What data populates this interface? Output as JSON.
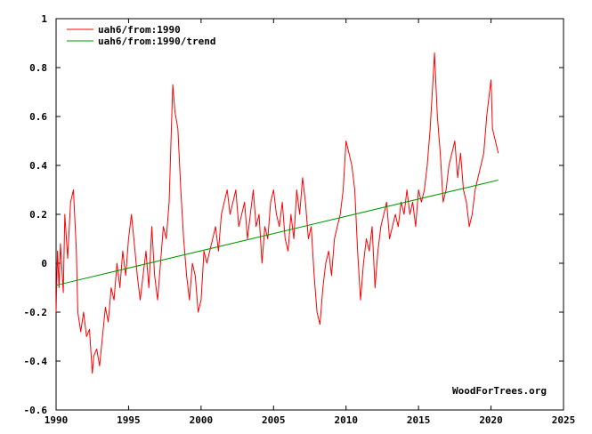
{
  "chart_data": {
    "type": "line",
    "title": "",
    "xlabel": "",
    "ylabel": "",
    "xlim": [
      1990,
      2025
    ],
    "ylim": [
      -0.6,
      1
    ],
    "x_ticks": [
      1990,
      1995,
      2000,
      2005,
      2010,
      2015,
      2020,
      2025
    ],
    "y_ticks": [
      -0.6,
      -0.4,
      -0.2,
      0,
      0.2,
      0.4,
      0.6,
      0.8,
      1
    ],
    "x_tick_labels": [
      "1990",
      "1995",
      "2000",
      "2005",
      "2010",
      "2015",
      "2020",
      "2025"
    ],
    "y_tick_labels": [
      "-0.6",
      "-0.4",
      "-0.2",
      "0",
      "0.2",
      "0.4",
      "0.6",
      "0.8",
      "1"
    ],
    "grid": false,
    "legend_position": "top-left",
    "credit": "WoodForTrees.org",
    "series": [
      {
        "name": "uah6/from:1990",
        "color": "#ff0000",
        "x": [
          1990.0,
          1990.1,
          1990.2,
          1990.3,
          1990.5,
          1990.6,
          1990.8,
          1991.0,
          1991.2,
          1991.4,
          1991.5,
          1991.7,
          1991.9,
          1992.1,
          1992.3,
          1992.5,
          1992.6,
          1992.8,
          1993.0,
          1993.2,
          1993.4,
          1993.6,
          1993.8,
          1994.0,
          1994.2,
          1994.4,
          1994.6,
          1994.8,
          1995.0,
          1995.2,
          1995.4,
          1995.6,
          1995.8,
          1996.0,
          1996.2,
          1996.4,
          1996.6,
          1996.8,
          1997.0,
          1997.2,
          1997.4,
          1997.6,
          1997.8,
          1997.95,
          1998.05,
          1998.2,
          1998.4,
          1998.6,
          1998.8,
          1999.0,
          1999.2,
          1999.4,
          1999.6,
          1999.8,
          2000.0,
          2000.2,
          2000.4,
          2000.6,
          2000.8,
          2001.0,
          2001.2,
          2001.4,
          2001.6,
          2001.8,
          2002.0,
          2002.2,
          2002.4,
          2002.6,
          2002.8,
          2003.0,
          2003.2,
          2003.4,
          2003.6,
          2003.8,
          2004.0,
          2004.2,
          2004.4,
          2004.6,
          2004.8,
          2005.0,
          2005.2,
          2005.4,
          2005.6,
          2005.8,
          2006.0,
          2006.2,
          2006.4,
          2006.6,
          2006.8,
          2007.0,
          2007.2,
          2007.4,
          2007.6,
          2007.8,
          2008.0,
          2008.2,
          2008.4,
          2008.6,
          2008.8,
          2009.0,
          2009.2,
          2009.4,
          2009.6,
          2009.8,
          2010.0,
          2010.2,
          2010.4,
          2010.6,
          2010.8,
          2011.0,
          2011.2,
          2011.4,
          2011.6,
          2011.8,
          2012.0,
          2012.2,
          2012.4,
          2012.6,
          2012.8,
          2013.0,
          2013.2,
          2013.4,
          2013.6,
          2013.8,
          2014.0,
          2014.2,
          2014.4,
          2014.6,
          2014.8,
          2015.0,
          2015.2,
          2015.4,
          2015.6,
          2015.8,
          2016.0,
          2016.1,
          2016.3,
          2016.5,
          2016.7,
          2016.9,
          2017.1,
          2017.3,
          2017.5,
          2017.7,
          2017.9,
          2018.1,
          2018.3,
          2018.5,
          2018.7,
          2018.9,
          2019.1,
          2019.3,
          2019.5,
          2019.7,
          2019.9,
          2020.0,
          2020.1,
          2020.3,
          2020.5
        ],
        "values": [
          -0.2,
          0.05,
          -0.1,
          0.08,
          -0.12,
          0.2,
          0.02,
          0.25,
          0.3,
          0.05,
          -0.2,
          -0.28,
          -0.2,
          -0.3,
          -0.27,
          -0.45,
          -0.38,
          -0.35,
          -0.42,
          -0.3,
          -0.18,
          -0.24,
          -0.1,
          -0.15,
          0.0,
          -0.1,
          0.05,
          -0.05,
          0.1,
          0.2,
          0.08,
          -0.05,
          -0.15,
          -0.05,
          0.05,
          -0.1,
          0.15,
          -0.05,
          -0.15,
          0.0,
          0.15,
          0.1,
          0.25,
          0.55,
          0.73,
          0.62,
          0.55,
          0.3,
          0.1,
          -0.05,
          -0.15,
          0.0,
          -0.05,
          -0.2,
          -0.15,
          0.05,
          0.0,
          0.05,
          0.1,
          0.15,
          0.05,
          0.2,
          0.25,
          0.3,
          0.2,
          0.25,
          0.3,
          0.15,
          0.2,
          0.25,
          0.1,
          0.2,
          0.3,
          0.15,
          0.2,
          0.0,
          0.15,
          0.1,
          0.25,
          0.3,
          0.2,
          0.15,
          0.25,
          0.1,
          0.05,
          0.2,
          0.1,
          0.3,
          0.2,
          0.35,
          0.25,
          0.1,
          0.15,
          -0.05,
          -0.2,
          -0.25,
          -0.1,
          0.0,
          0.05,
          -0.05,
          0.1,
          0.15,
          0.2,
          0.3,
          0.5,
          0.45,
          0.4,
          0.3,
          0.05,
          -0.15,
          0.0,
          0.1,
          0.05,
          0.15,
          -0.1,
          0.05,
          0.15,
          0.2,
          0.25,
          0.1,
          0.15,
          0.2,
          0.15,
          0.25,
          0.2,
          0.3,
          0.2,
          0.25,
          0.15,
          0.3,
          0.25,
          0.3,
          0.4,
          0.55,
          0.75,
          0.86,
          0.6,
          0.45,
          0.25,
          0.3,
          0.4,
          0.45,
          0.5,
          0.35,
          0.45,
          0.3,
          0.25,
          0.15,
          0.2,
          0.3,
          0.35,
          0.4,
          0.45,
          0.6,
          0.7,
          0.75,
          0.55,
          0.5,
          0.45
        ]
      },
      {
        "name": "uah6/from:1990/trend",
        "color": "#009900",
        "x": [
          1990.0,
          2020.5
        ],
        "values": [
          -0.09,
          0.34
        ]
      }
    ]
  }
}
